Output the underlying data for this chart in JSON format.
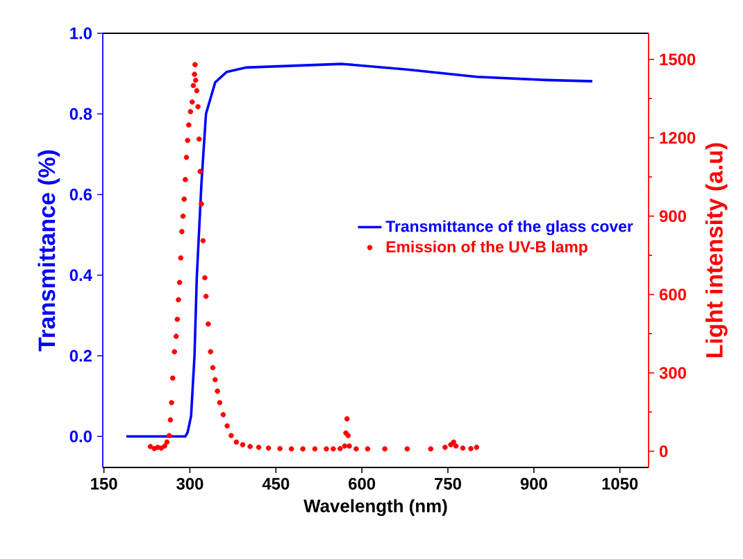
{
  "chart_data": {
    "type": "line",
    "xlabel": "Wavelength (nm)",
    "ylabel": "Transmittance (%)",
    "y2label": "Light intensity (a.u)",
    "xlim": [
      148,
      1100
    ],
    "xticks": [
      150,
      300,
      450,
      600,
      750,
      900,
      1050
    ],
    "ylim": [
      -0.077,
      1.0
    ],
    "yticks": [
      {
        "value": 0,
        "label": "0.0"
      },
      0.2,
      0.4,
      0.6,
      0.8,
      {
        "value": 1,
        "label": "1.0"
      }
    ],
    "y2lim": [
      -62,
      1600
    ],
    "y2ticks": [
      0,
      300,
      600,
      900,
      1200,
      1500
    ],
    "legend": "right",
    "series": [
      {
        "name": "Transmittance of the glass cover",
        "color": "#0000ff",
        "x": [
          189,
          292,
          296,
          302,
          308,
          312,
          320,
          328,
          344,
          364,
          397,
          566,
          679,
          800,
          921,
          1002
        ],
        "values": [
          0,
          0,
          0.01,
          0.05,
          0.2,
          0.395,
          0.625,
          0.8,
          0.878,
          0.904,
          0.915,
          0.924,
          0.91,
          0.892,
          0.884,
          0.881
        ]
      },
      {
        "name": "Emission of the UV-B lamp",
        "type": "scatter",
        "axis": "y2",
        "marker": "circle",
        "color": "#ff0000",
        "x": [
          231,
          238,
          244,
          250,
          256,
          260,
          264,
          266,
          268,
          270,
          273,
          276,
          278,
          280,
          282,
          284,
          286,
          288,
          290,
          292,
          294,
          296,
          298,
          301,
          304,
          306,
          308,
          309,
          310,
          312,
          314,
          316,
          318,
          320,
          323,
          326,
          328,
          332,
          336,
          340,
          344,
          348,
          352,
          358,
          365,
          372,
          381,
          392,
          405,
          420,
          437,
          457,
          477,
          497,
          518,
          538,
          550,
          562,
          570,
          572,
          574,
          576,
          578,
          590,
          610,
          640,
          679,
          720,
          745,
          755,
          760,
          764,
          776,
          790,
          800
        ],
        "values": [
          18,
          10,
          15,
          12,
          20,
          35,
          60,
          120,
          186,
          280,
          381,
          440,
          505,
          580,
          646,
          740,
          841,
          900,
          965,
          1040,
          1125,
          1190,
          1249,
          1300,
          1337,
          1400,
          1443,
          1480,
          1420,
          1380,
          1319,
          1195,
          1071,
          947,
          806,
          664,
          593,
          487,
          381,
          320,
          274,
          230,
          186,
          140,
          97,
          60,
          35,
          25,
          18,
          15,
          12,
          10,
          9,
          9,
          9,
          9,
          9,
          10,
          20,
          70,
          124,
          60,
          20,
          9,
          9,
          9,
          9,
          9,
          15,
          25,
          35,
          20,
          12,
          10,
          15
        ]
      }
    ]
  }
}
